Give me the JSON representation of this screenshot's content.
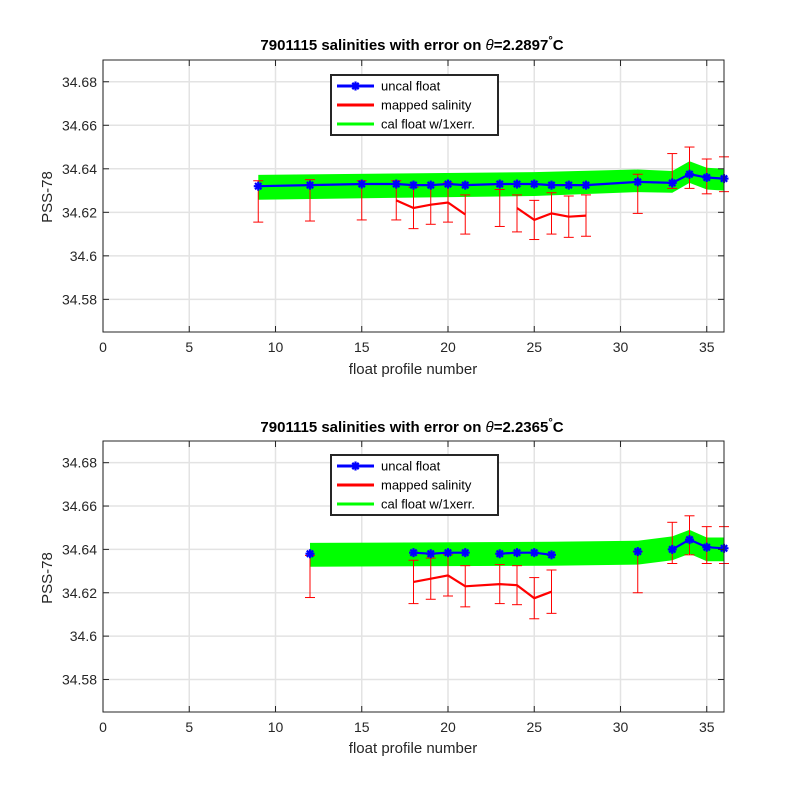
{
  "chart_data": [
    {
      "type": "line",
      "title_prefix": "7901115 salinities with error on ",
      "title_theta": "θ",
      "title_value": "=2.2897",
      "title_degree": "°",
      "title_unit": "C",
      "xlabel": "float profile number",
      "ylabel": "PSS-78",
      "xlim": [
        0,
        36
      ],
      "ylim": [
        34.565,
        34.69
      ],
      "xticks": [
        0,
        5,
        10,
        15,
        20,
        25,
        30,
        35
      ],
      "yticks": [
        34.58,
        34.6,
        34.62,
        34.64,
        34.66,
        34.68
      ],
      "ytick_labels": [
        "34.58",
        "34.6",
        "34.62",
        "34.64",
        "34.66",
        "34.68"
      ],
      "grid": true,
      "legend_position": "top-center",
      "series": [
        {
          "name": "uncal float",
          "color": "#0000ff",
          "marker": "asterisk",
          "x": [
            9,
            12,
            15,
            17,
            18,
            19,
            20,
            21,
            23,
            24,
            25,
            26,
            27,
            28,
            31,
            33,
            34,
            35,
            36
          ],
          "y": [
            34.632,
            34.6325,
            34.633,
            34.633,
            34.6325,
            34.6325,
            34.633,
            34.6325,
            34.633,
            34.633,
            34.633,
            34.6325,
            34.6325,
            34.6325,
            34.634,
            34.6335,
            34.6375,
            34.636,
            34.6355
          ]
        },
        {
          "name": "mapped salinity",
          "color": "#ff0000",
          "x": [
            9,
            12,
            15,
            17,
            18,
            19,
            20,
            21,
            23,
            24,
            25,
            26,
            27,
            28,
            31,
            33,
            34,
            35,
            36
          ],
          "y": [
            null,
            null,
            null,
            34.6255,
            34.622,
            34.6235,
            34.6245,
            34.619,
            null,
            34.622,
            34.6165,
            34.6195,
            34.618,
            34.6185,
            null,
            null,
            null,
            null,
            null
          ],
          "error_center": [
            34.625,
            34.6255,
            34.6255,
            34.6255,
            34.622,
            34.6235,
            34.6245,
            34.619,
            34.622,
            34.6195,
            34.6165,
            34.6195,
            34.618,
            34.6185,
            34.6285,
            34.639,
            34.6405,
            34.6365,
            34.6375
          ],
          "error": [
            0.0095,
            0.0095,
            0.009,
            0.009,
            0.0095,
            0.009,
            0.009,
            0.009,
            0.0085,
            0.0085,
            0.009,
            0.0095,
            0.0095,
            0.0095,
            0.009,
            0.008,
            0.0095,
            0.008,
            0.008
          ]
        },
        {
          "name": "cal float w/1xerr.",
          "color": "#00ff00",
          "x": [
            9,
            25,
            31,
            33,
            34,
            35,
            36
          ],
          "y": [
            34.6315,
            34.633,
            34.6345,
            34.634,
            34.6385,
            34.6355,
            34.635
          ],
          "err": [
            0.0057,
            0.0055,
            0.0052,
            0.005,
            0.005,
            0.005,
            0.005
          ]
        }
      ]
    },
    {
      "type": "line",
      "title_prefix": "7901115 salinities with error on ",
      "title_theta": "θ",
      "title_value": "=2.2365",
      "title_degree": "°",
      "title_unit": "C",
      "xlabel": "float profile number",
      "ylabel": "PSS-78",
      "xlim": [
        0,
        36
      ],
      "ylim": [
        34.565,
        34.69
      ],
      "xticks": [
        0,
        5,
        10,
        15,
        20,
        25,
        30,
        35
      ],
      "yticks": [
        34.58,
        34.6,
        34.62,
        34.64,
        34.66,
        34.68
      ],
      "ytick_labels": [
        "34.58",
        "34.6",
        "34.62",
        "34.64",
        "34.66",
        "34.68"
      ],
      "grid": true,
      "legend_position": "top-center",
      "series": [
        {
          "name": "uncal float",
          "color": "#0000ff",
          "marker": "asterisk",
          "x": [
            12,
            18,
            19,
            20,
            21,
            23,
            24,
            25,
            26,
            31,
            33,
            34,
            35,
            36
          ],
          "y": [
            34.638,
            34.6385,
            34.638,
            34.6385,
            34.6385,
            34.638,
            34.6385,
            34.6385,
            34.6375,
            34.639,
            34.64,
            34.6445,
            34.641,
            34.6405
          ],
          "segments": [
            [
              0,
              0
            ],
            [
              1,
              4
            ],
            [
              5,
              8
            ],
            [
              9,
              9
            ],
            [
              10,
              13
            ]
          ]
        },
        {
          "name": "mapped salinity",
          "color": "#ff0000",
          "x": [
            12,
            18,
            19,
            20,
            21,
            23,
            24,
            25,
            26,
            31,
            33,
            34,
            35,
            36
          ],
          "y": [
            null,
            34.625,
            34.6265,
            34.628,
            34.623,
            34.624,
            34.6235,
            34.6175,
            34.6205,
            null,
            null,
            null,
            null,
            null
          ],
          "error_center": [
            34.6275,
            34.625,
            34.6265,
            34.628,
            34.623,
            34.624,
            34.6235,
            34.6175,
            34.6205,
            34.6295,
            34.643,
            34.6465,
            34.642,
            34.642
          ],
          "error": [
            0.0097,
            0.01,
            0.0095,
            0.0095,
            0.0095,
            0.009,
            0.009,
            0.0095,
            0.01,
            0.0095,
            0.0095,
            0.009,
            0.0085,
            0.0085
          ]
        },
        {
          "name": "cal float w/1xerr.",
          "color": "#00ff00",
          "x": [
            12,
            26,
            31,
            33,
            34,
            35,
            36
          ],
          "y": [
            34.6375,
            34.638,
            34.6385,
            34.6405,
            34.6435,
            34.64,
            34.64
          ],
          "err": [
            0.0055,
            0.0055,
            0.0055,
            0.0055,
            0.0055,
            0.0055,
            0.0055
          ]
        }
      ]
    }
  ]
}
